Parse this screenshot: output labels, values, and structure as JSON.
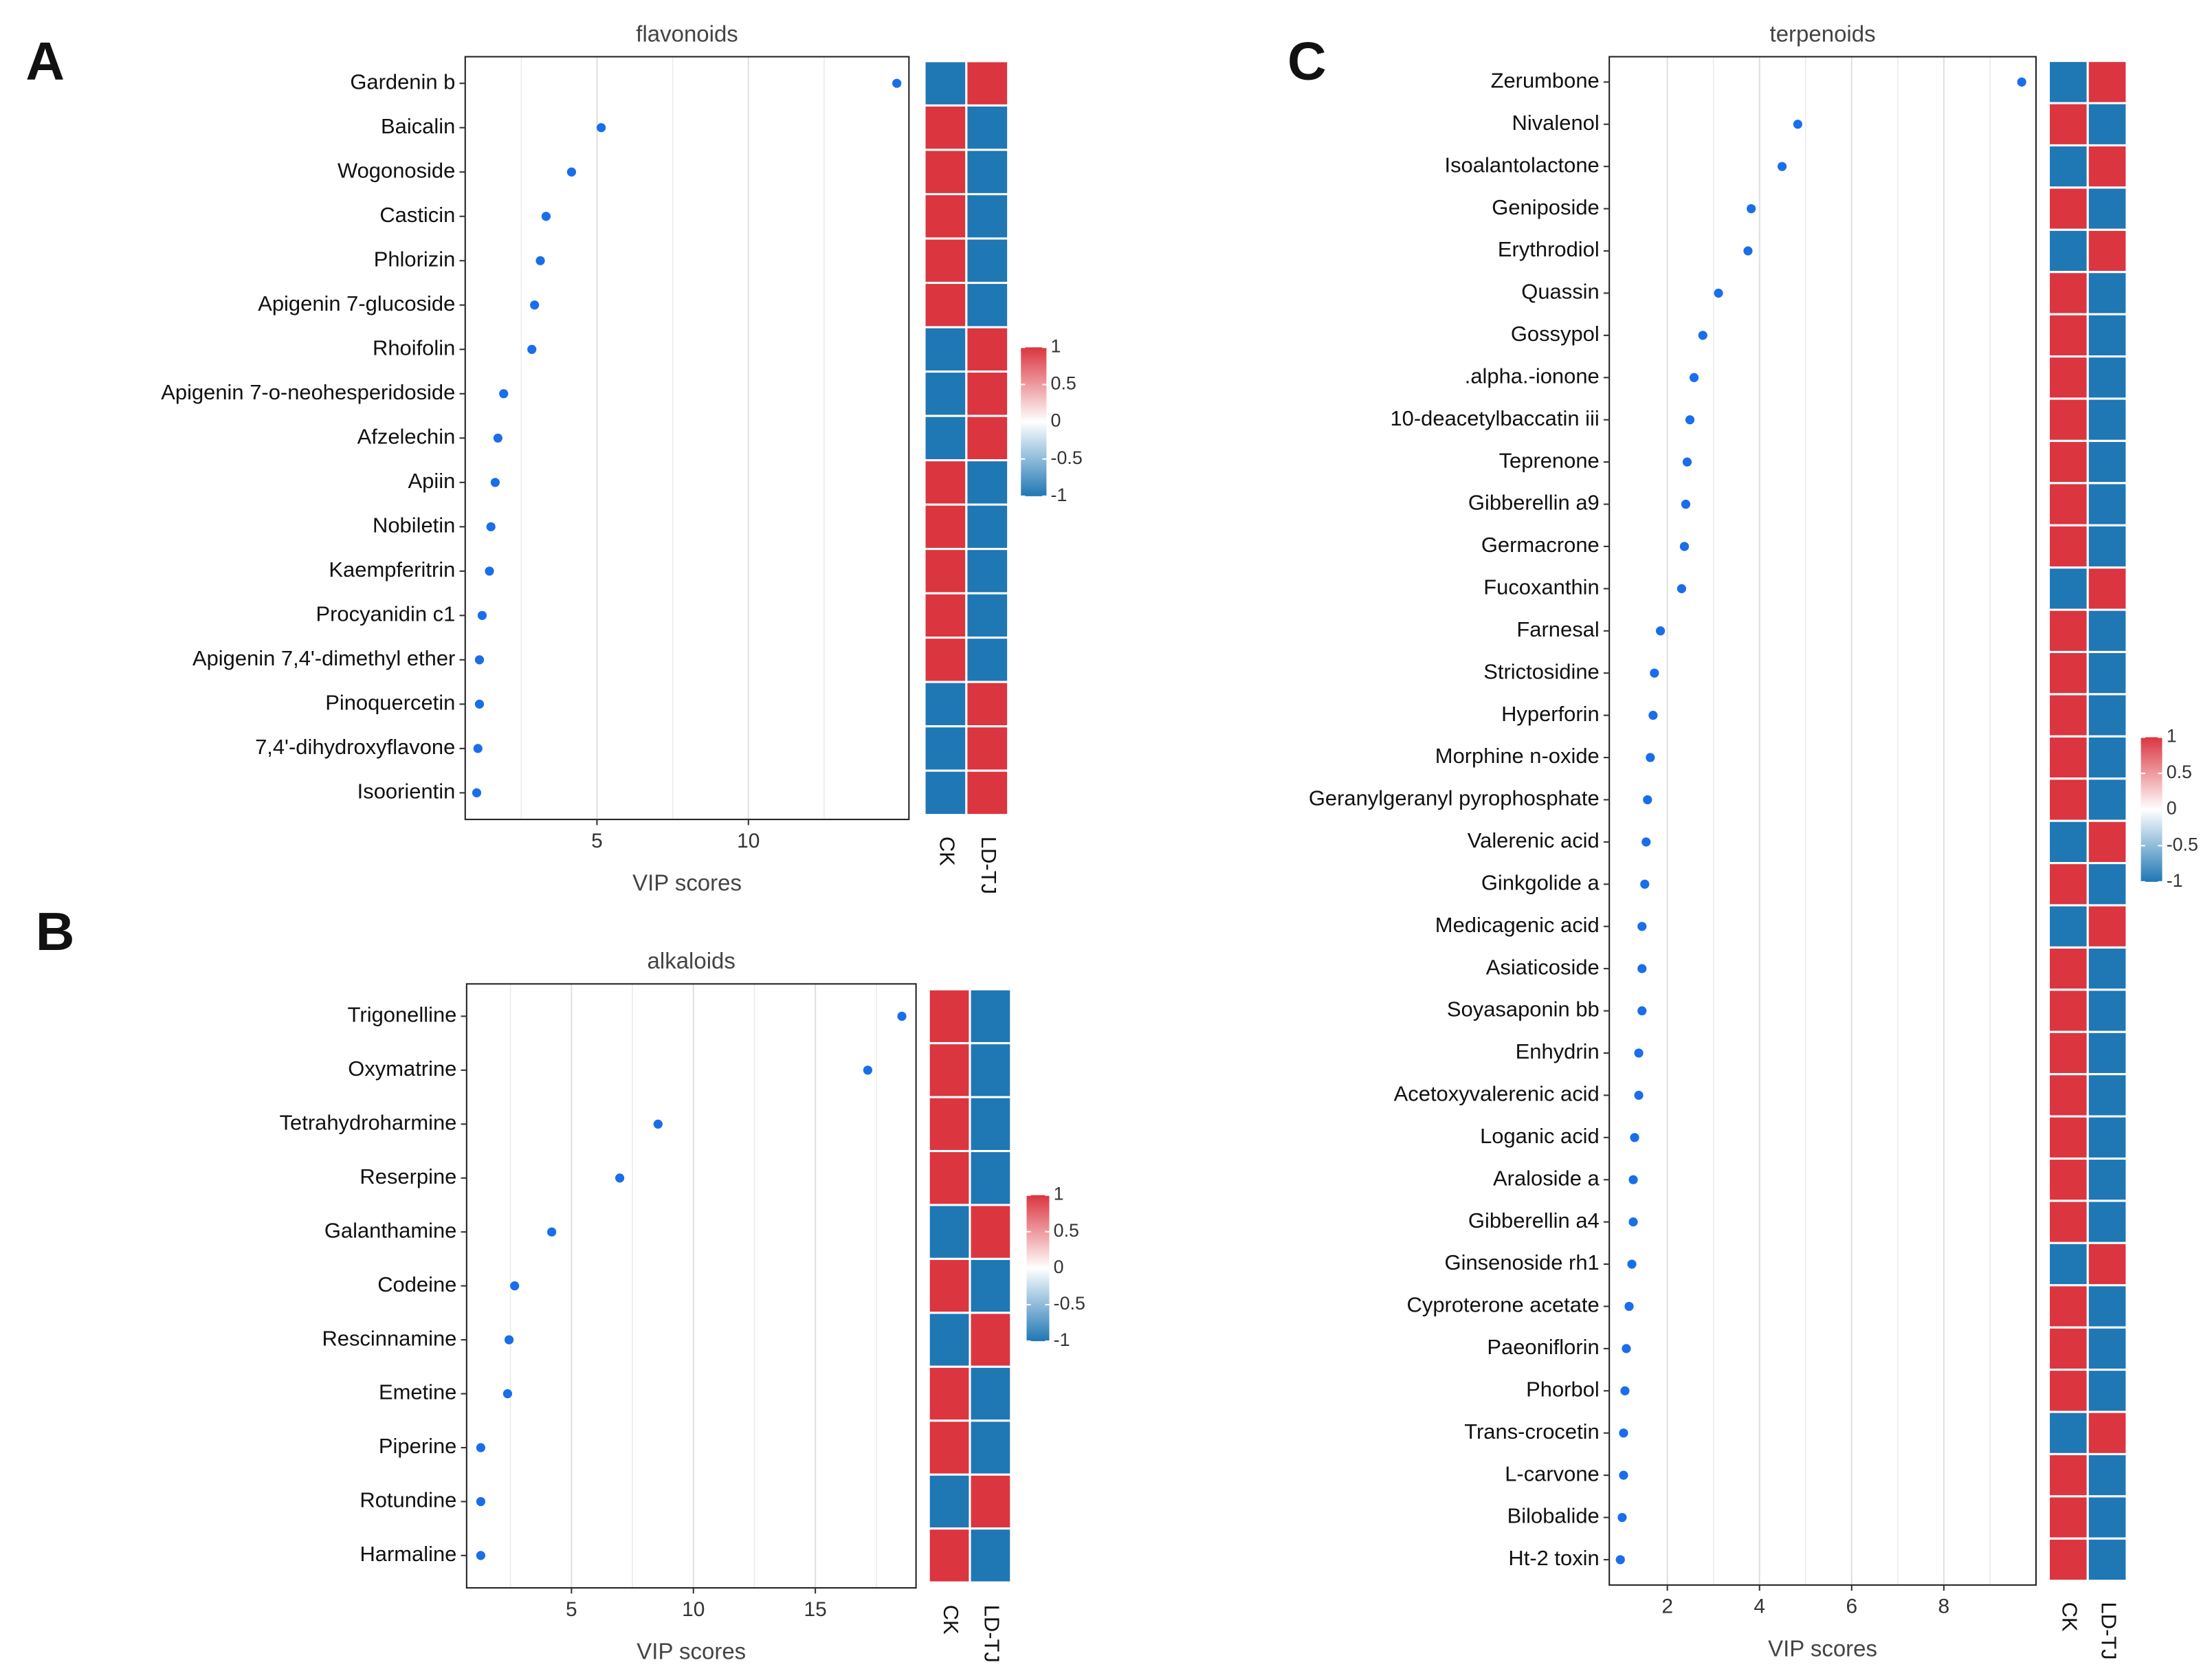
{
  "chart_data": [
    {
      "type": "dot",
      "panel": "A",
      "title": "flavonoids",
      "xlabel": "VIP scores",
      "categories": [
        "Gardenin b",
        "Baicalin",
        "Wogonoside",
        "Casticin",
        "Phlorizin",
        "Apigenin 7-glucoside",
        "Rhoifolin",
        "Apigenin 7-o-neohesperidoside",
        "Afzelechin",
        "Apiin",
        "Nobiletin",
        "Kaempferitrin",
        "Procyanidin c1",
        "Apigenin 7,4'-dimethyl ether",
        "Pinoquercetin",
        "7,4'-dihydroxyflavone",
        "Isoorientin"
      ],
      "values": [
        14.9,
        5.14,
        4.16,
        3.32,
        3.13,
        2.94,
        2.85,
        1.92,
        1.73,
        1.64,
        1.5,
        1.45,
        1.21,
        1.12,
        1.12,
        1.07,
        1.03
      ],
      "color": "#1a6ee8",
      "xlim": [
        0.65,
        15.3
      ],
      "xticks": [
        5,
        10
      ],
      "xminor": [
        2.5,
        7.5,
        12.5
      ],
      "grid": true,
      "heatmap": {
        "columns": [
          "CK",
          "LD-TJ"
        ],
        "values": [
          [
            -1,
            1,
            1,
            1,
            1,
            1,
            -1,
            -1,
            -1,
            1,
            1,
            1,
            1,
            1,
            -1,
            -1,
            -1
          ],
          [
            1,
            -1,
            -1,
            -1,
            -1,
            -1,
            1,
            1,
            1,
            -1,
            -1,
            -1,
            -1,
            -1,
            1,
            1,
            1
          ]
        ],
        "colors": [
          "#1f77b4",
          "#ffffff",
          "#db3540"
        ],
        "clim": [
          -1,
          1
        ],
        "colorbar_ticks": [
          1,
          0.5,
          0,
          -0.5,
          -1
        ]
      }
    },
    {
      "type": "dot",
      "panel": "B",
      "title": "alkaloids",
      "xlabel": "VIP scores",
      "categories": [
        "Trigonelline",
        "Oxymatrine",
        "Tetrahydroharmine",
        "Reserpine",
        "Galanthamine",
        "Codeine",
        "Rescinnamine",
        "Emetine",
        "Piperine",
        "Rotundine",
        "Harmaline"
      ],
      "values": [
        18.55,
        17.15,
        8.55,
        6.98,
        4.19,
        2.67,
        2.44,
        2.38,
        1.28,
        1.28,
        1.28
      ],
      "color": "#1a6ee8",
      "xlim": [
        0.7,
        19.13
      ],
      "xticks": [
        5,
        10,
        15
      ],
      "xminor": [
        2.5,
        7.5,
        12.5,
        17.5
      ],
      "grid": true,
      "heatmap": {
        "columns": [
          "CK",
          "LD-TJ"
        ],
        "values": [
          [
            1,
            1,
            1,
            1,
            -1,
            1,
            -1,
            1,
            1,
            -1,
            1
          ],
          [
            -1,
            -1,
            -1,
            -1,
            1,
            -1,
            1,
            -1,
            -1,
            1,
            -1
          ]
        ],
        "colors": [
          "#1f77b4",
          "#ffffff",
          "#db3540"
        ],
        "clim": [
          -1,
          1
        ],
        "colorbar_ticks": [
          1,
          0.5,
          0,
          -0.5,
          -1
        ]
      }
    },
    {
      "type": "dot",
      "panel": "C",
      "title": "terpenoids",
      "xlabel": "VIP scores",
      "categories": [
        "Zerumbone",
        "Nivalenol",
        "Isoalantolactone",
        "Geniposide",
        "Erythrodiol",
        "Quassin",
        "Gossypol",
        ".alpha.-ionone",
        "10-deacetylbaccatin iii",
        "Teprenone",
        "Gibberellin a9",
        "Germacrone",
        "Fucoxanthin",
        "Farnesal",
        "Strictosidine",
        "Hyperforin",
        "Morphine n-oxide",
        "Geranylgeranyl pyrophosphate",
        "Valerenic acid",
        "Ginkgolide a",
        "Medicagenic acid",
        "Asiaticoside",
        "Soyasaponin bb",
        "Enhydrin",
        "Acetoxyvalerenic acid",
        "Loganic acid",
        "Araloside a",
        "Gibberellin a4",
        "Ginsenoside rh1",
        "Cyproterone acetate",
        "Paeoniflorin",
        "Phorbol",
        "Trans-crocetin",
        "L-carvone",
        "Bilobalide",
        "Ht-2 toxin"
      ],
      "values": [
        9.69,
        4.83,
        4.49,
        3.82,
        3.75,
        3.11,
        2.77,
        2.58,
        2.49,
        2.43,
        2.4,
        2.37,
        2.31,
        1.85,
        1.72,
        1.69,
        1.63,
        1.57,
        1.54,
        1.51,
        1.45,
        1.45,
        1.45,
        1.38,
        1.38,
        1.29,
        1.26,
        1.26,
        1.23,
        1.17,
        1.11,
        1.08,
        1.05,
        1.05,
        1.02,
        0.98
      ],
      "color": "#1a6ee8",
      "xlim": [
        0.74,
        10.0
      ],
      "xticks": [
        2,
        4,
        6,
        8
      ],
      "xminor": [
        3,
        5,
        7,
        9
      ],
      "grid": true,
      "heatmap": {
        "columns": [
          "CK",
          "LD-TJ"
        ],
        "values": [
          [
            -1,
            1,
            -1,
            1,
            -1,
            1,
            1,
            1,
            1,
            1,
            1,
            1,
            -1,
            1,
            1,
            1,
            1,
            1,
            -1,
            1,
            -1,
            1,
            1,
            1,
            1,
            1,
            1,
            1,
            -1,
            1,
            1,
            1,
            -1,
            1,
            1,
            1
          ],
          [
            1,
            -1,
            1,
            -1,
            1,
            -1,
            -1,
            -1,
            -1,
            -1,
            -1,
            -1,
            1,
            -1,
            -1,
            -1,
            -1,
            -1,
            1,
            -1,
            1,
            -1,
            -1,
            -1,
            -1,
            -1,
            -1,
            -1,
            1,
            -1,
            -1,
            -1,
            1,
            -1,
            -1,
            -1
          ]
        ],
        "colors": [
          "#1f77b4",
          "#ffffff",
          "#db3540"
        ],
        "clim": [
          -1,
          1
        ],
        "colorbar_ticks": [
          1,
          0.5,
          0,
          -0.5,
          -1
        ]
      }
    }
  ]
}
